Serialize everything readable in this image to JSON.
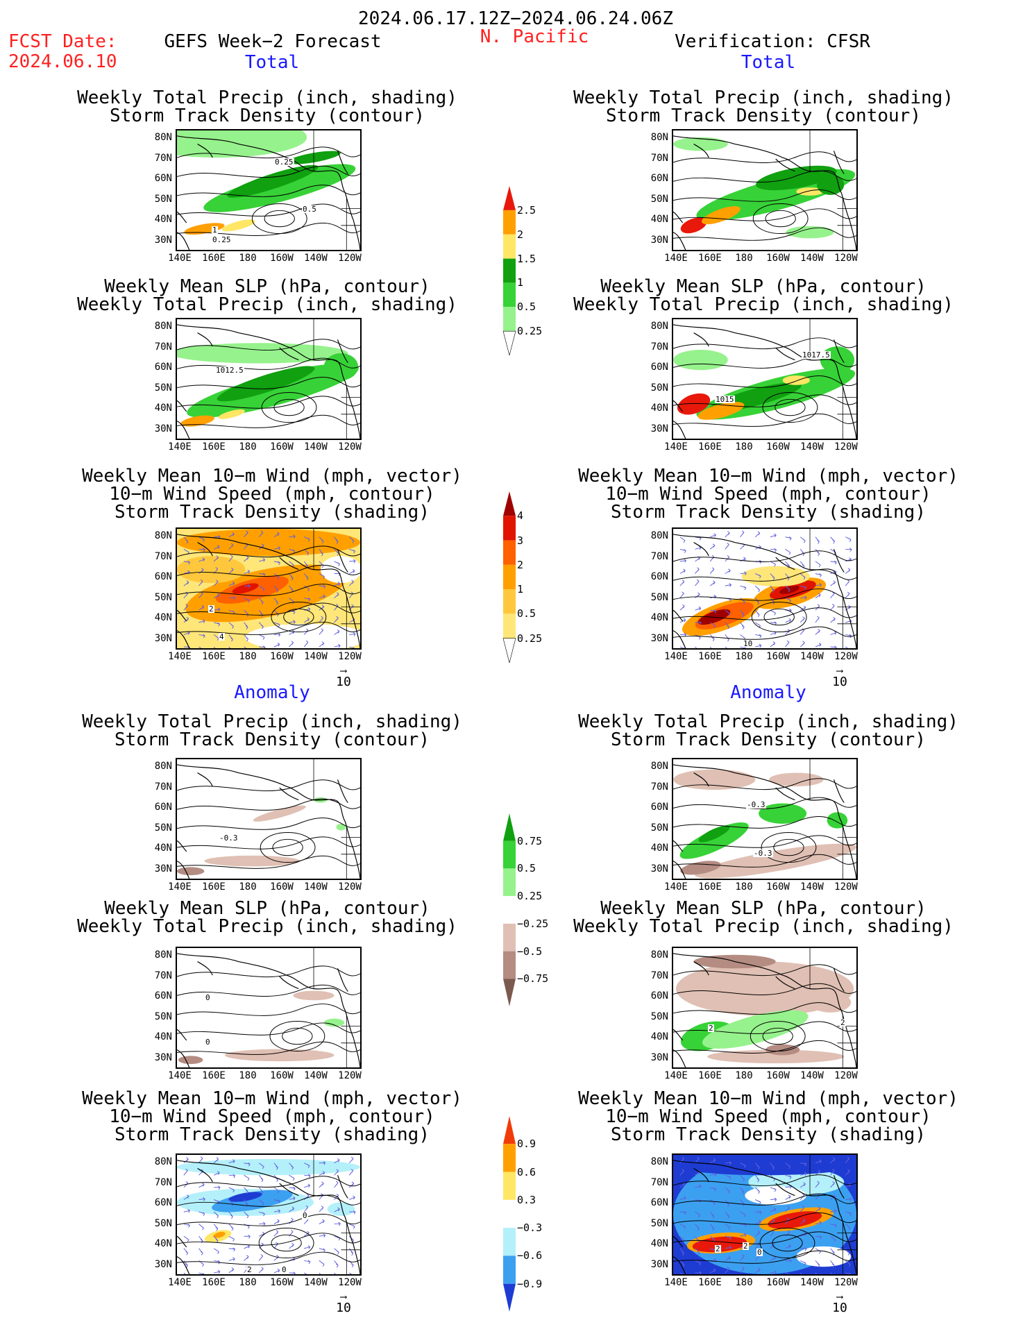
{
  "header": {
    "date_range": "2024.06.17.12Z−2024.06.24.06Z",
    "fcst_date_label": "FCST Date:",
    "fcst_date": "2024.06.10",
    "left_title": "GEFS Week−2 Forecast",
    "region": "N. Pacific",
    "right_title": "Verification: CFSR"
  },
  "sections": {
    "total": "Total",
    "anomaly": "Anomaly"
  },
  "panel_titles": {
    "precip_track": [
      "Weekly Total Precip (inch, shading)",
      "Storm Track Density (contour)"
    ],
    "slp_precip": [
      "Weekly Mean SLP (hPa, contour)",
      "Weekly Total Precip (inch, shading)"
    ],
    "wind_track": [
      "Weekly Mean 10−m Wind (mph, vector)",
      "10−m Wind Speed (mph, contour)",
      "Storm Track Density (shading)"
    ]
  },
  "axes": {
    "lat": [
      "80N",
      "70N",
      "60N",
      "50N",
      "40N",
      "30N"
    ],
    "lon": [
      "140E",
      "160E",
      "180",
      "160W",
      "140W",
      "120W"
    ]
  },
  "vector_ref": "10",
  "contour_labels": {
    "fc_total_precip": [
      "0.25",
      "0.5",
      "1",
      "0.25"
    ],
    "fc_total_slp": [
      "1012.5"
    ],
    "fc_total_wind": [
      "2",
      "4"
    ],
    "vf_total_slp": [
      "1017.5",
      "1015"
    ],
    "vf_total_wind": [
      "10"
    ],
    "fc_anom_precip": [
      "-0.3"
    ],
    "fc_anom_slp": [
      "0",
      "0"
    ],
    "fc_anom_wind": [
      "0",
      "2",
      "0"
    ],
    "vf_anom_precip": [
      "-0.3",
      "-0.3"
    ],
    "vf_anom_slp": [
      "2",
      "2"
    ],
    "vf_anom_wind": [
      "2",
      "2",
      "0"
    ]
  },
  "colorbars": {
    "precip_total": {
      "labels": [
        "2.5",
        "2",
        "1.5",
        "1",
        "0.5",
        "0.25"
      ],
      "colors": [
        "#e8190b",
        "#ffa000",
        "#ffe664",
        "#10a010",
        "#37d237",
        "#96f28c",
        "#ffffff"
      ]
    },
    "track_total": {
      "labels": [
        "4",
        "3",
        "2",
        "1",
        "0.5",
        "0.25"
      ],
      "colors": [
        "#a00000",
        "#e11400",
        "#ff6000",
        "#ffa000",
        "#ffc83c",
        "#ffe678",
        "#ffffff"
      ]
    },
    "precip_anom": {
      "labels": [
        "0.75",
        "0.5",
        "0.25",
        "−0.25",
        "−0.5",
        "−0.75"
      ],
      "colors": [
        "#10a010",
        "#37d237",
        "#96f28c",
        "#ffffff",
        "#e0c0b4",
        "#b48c82",
        "#7b5a50"
      ]
    },
    "track_anom": {
      "labels": [
        "0.9",
        "0.6",
        "0.3",
        "−0.3",
        "−0.6",
        "−0.9"
      ],
      "colors": [
        "#f03c0a",
        "#ffa000",
        "#ffe664",
        "#ffffff",
        "#b4f0fa",
        "#3ca0f0",
        "#1e3cd2"
      ]
    }
  }
}
